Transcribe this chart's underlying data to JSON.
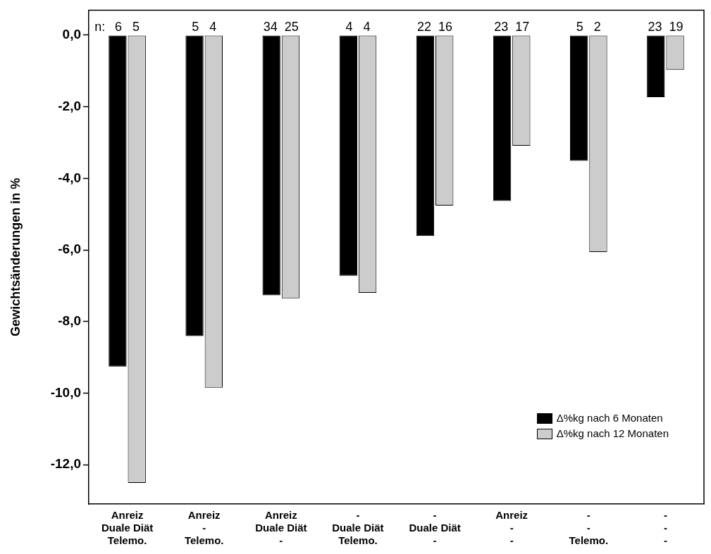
{
  "chart_data": {
    "type": "bar",
    "ylabel": "Gewichtsänderungen in %",
    "categories": [
      "Anreiz\nDuale Diät\nTelemo.",
      "Anreiz\n-\nTelemo.",
      "Anreiz\nDuale Diät\n-",
      "-\nDuale Diät\nTelemo.",
      "-\nDuale Diät\n-",
      "Anreiz\n-\n-",
      "-\n-\nTelemo.",
      "-\n-\n-"
    ],
    "series": [
      {
        "name": "Δ%kg nach 6 Monaten",
        "color": "#000000",
        "values": [
          -9.26,
          -8.41,
          -7.27,
          -6.72,
          -5.61,
          -4.63,
          -3.51,
          -1.73
        ]
      },
      {
        "name": "Δ%kg nach 12 Monaten",
        "color": "#cccccc",
        "values": [
          -12.51,
          -9.85,
          -7.35,
          -7.2,
          -4.76,
          -3.09,
          -6.06,
          -0.97
        ]
      }
    ],
    "annotations": [
      "n:",
      {
        "text": "6   5",
        "x": "Anreiz\nDuale Diät\nTelemo.",
        "y": 0
      },
      {
        "text": "5   4",
        "x": "Anreiz\n-\nTelemo.",
        "y": 0
      },
      {
        "text": "34  25",
        "x": "Anreiz\nDuale Diät\n-",
        "y": 0
      },
      {
        "text": "4   4",
        "x": "-\nDuale Diät\nTelemo.",
        "y": 0
      },
      {
        "text": "22  16",
        "x": "-\nDuale Diät\n-",
        "y": 0
      },
      {
        "text": "23  17",
        "x": "Anreiz\n-\n-",
        "y": 0
      },
      {
        "text": "5   2",
        "x": "-\n-\nTelemo.",
        "y": 0
      },
      {
        "text": "23  19",
        "x": "-\n-\n-",
        "y": 0
      }
    ],
    "ylim": [
      -13.1,
      0.7
    ],
    "yticks": [
      {
        "value": 0,
        "label": "0,0"
      },
      {
        "value": -2,
        "label": "-2,0"
      },
      {
        "value": -4,
        "label": "-4,0"
      },
      {
        "value": -6,
        "label": "-6,0"
      },
      {
        "value": -8,
        "label": "-8,0"
      },
      {
        "value": -10,
        "label": "-10,0"
      },
      {
        "value": -12,
        "label": "-12,0"
      }
    ],
    "grid": false,
    "legend": "bottom right"
  }
}
